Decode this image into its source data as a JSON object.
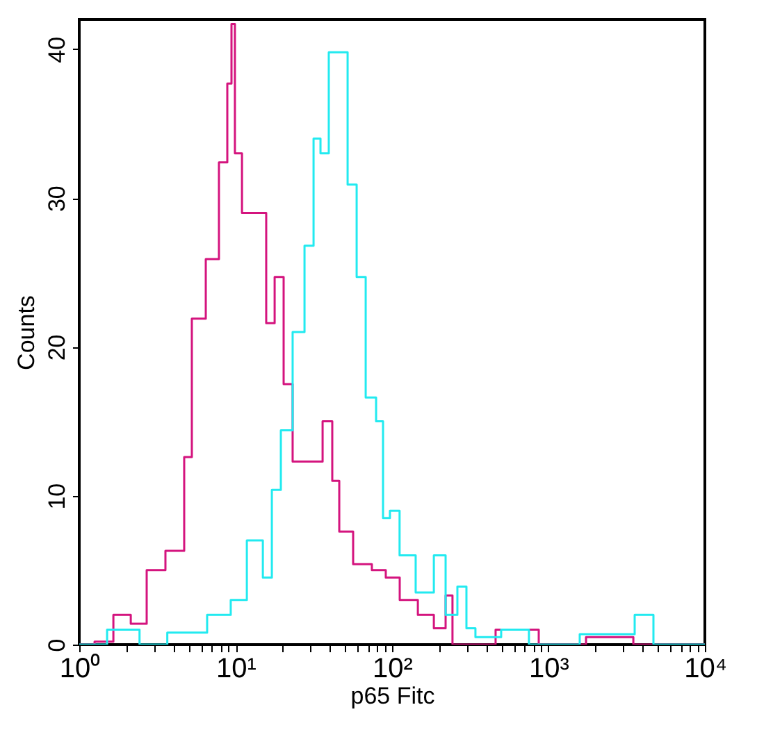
{
  "chart_data": {
    "type": "step",
    "xlabel": "p65 Fitc",
    "ylabel": "Counts",
    "log": "x",
    "grid": false,
    "xlim": [
      1,
      10000
    ],
    "ylim": [
      0,
      42
    ],
    "xticks": [
      {
        "value": 1,
        "label": "10⁰"
      },
      {
        "value": 2,
        "label": null
      },
      {
        "value": 3,
        "label": null
      },
      {
        "value": 4,
        "label": null
      },
      {
        "value": 5,
        "label": null
      },
      {
        "value": 6,
        "label": null
      },
      {
        "value": 7,
        "label": null
      },
      {
        "value": 8,
        "label": null
      },
      {
        "value": 9,
        "label": null
      },
      {
        "value": 10,
        "label": "10¹"
      },
      {
        "value": 20,
        "label": null
      },
      {
        "value": 30,
        "label": null
      },
      {
        "value": 40,
        "label": null
      },
      {
        "value": 50,
        "label": null
      },
      {
        "value": 60,
        "label": null
      },
      {
        "value": 70,
        "label": null
      },
      {
        "value": 80,
        "label": null
      },
      {
        "value": 90,
        "label": null
      },
      {
        "value": 100,
        "label": "10²"
      },
      {
        "value": 200,
        "label": null
      },
      {
        "value": 300,
        "label": null
      },
      {
        "value": 400,
        "label": null
      },
      {
        "value": 500,
        "label": null
      },
      {
        "value": 600,
        "label": null
      },
      {
        "value": 700,
        "label": null
      },
      {
        "value": 800,
        "label": null
      },
      {
        "value": 900,
        "label": null
      },
      {
        "value": 1000,
        "label": "10³"
      },
      {
        "value": 2000,
        "label": null
      },
      {
        "value": 3000,
        "label": null
      },
      {
        "value": 4000,
        "label": null
      },
      {
        "value": 5000,
        "label": null
      },
      {
        "value": 6000,
        "label": null
      },
      {
        "value": 7000,
        "label": null
      },
      {
        "value": 8000,
        "label": null
      },
      {
        "value": 9000,
        "label": null
      },
      {
        "value": 10000,
        "label": "10⁴"
      }
    ],
    "yticks": [
      0,
      10,
      20,
      30,
      40
    ],
    "series": [
      {
        "color": "#d4147e",
        "x": [
          1,
          1.57,
          1.74,
          2.62,
          2.78,
          4.55,
          4.83,
          5.7,
          7.28,
          8.4,
          9.31,
          9.5,
          10.3,
          11.7,
          14.9,
          16.5,
          19.1,
          21.5,
          24.9,
          32.5,
          39.8,
          43.2,
          48.9,
          65,
          84.9,
          97.9,
          128,
          167,
          205,
          236,
          251,
          840,
          894,
          3380,
          3600,
          10000
        ],
        "values": [
          0,
          0.2,
          2,
          1.4,
          5,
          6.3,
          12.6,
          21.9,
          25.9,
          32.4,
          37.7,
          41.7,
          33,
          29,
          29,
          21.6,
          24.7,
          17.5,
          12.3,
          12.3,
          15,
          11,
          7.6,
          5.4,
          5,
          4.5,
          3,
          2,
          1.1,
          3.3,
          0,
          1,
          0,
          0.5,
          0,
          0
        ]
      },
      {
        "color": "#22eaf0",
        "x": [
          1,
          2.27,
          2.6,
          5.14,
          8.4,
          10.3,
          13.5,
          16.5,
          17.6,
          21.5,
          24.9,
          30.5,
          32.5,
          37.4,
          41.5,
          47.9,
          56.4,
          62.5,
          73.6,
          84.9,
          90.3,
          104,
          120,
          167,
          205,
          236,
          290,
          308,
          378,
          657,
          857,
          2930,
          4320,
          5090,
          10000
        ],
        "values": [
          0,
          1,
          0,
          0.8,
          2,
          3,
          7,
          4.5,
          10.4,
          14.4,
          21,
          26.8,
          34,
          33,
          39.8,
          39.8,
          30.9,
          24.7,
          16.6,
          15,
          8.5,
          9,
          6,
          3.5,
          6,
          2,
          3.9,
          1.1,
          0.5,
          1,
          0,
          0.7,
          2,
          0,
          0
        ]
      }
    ]
  }
}
